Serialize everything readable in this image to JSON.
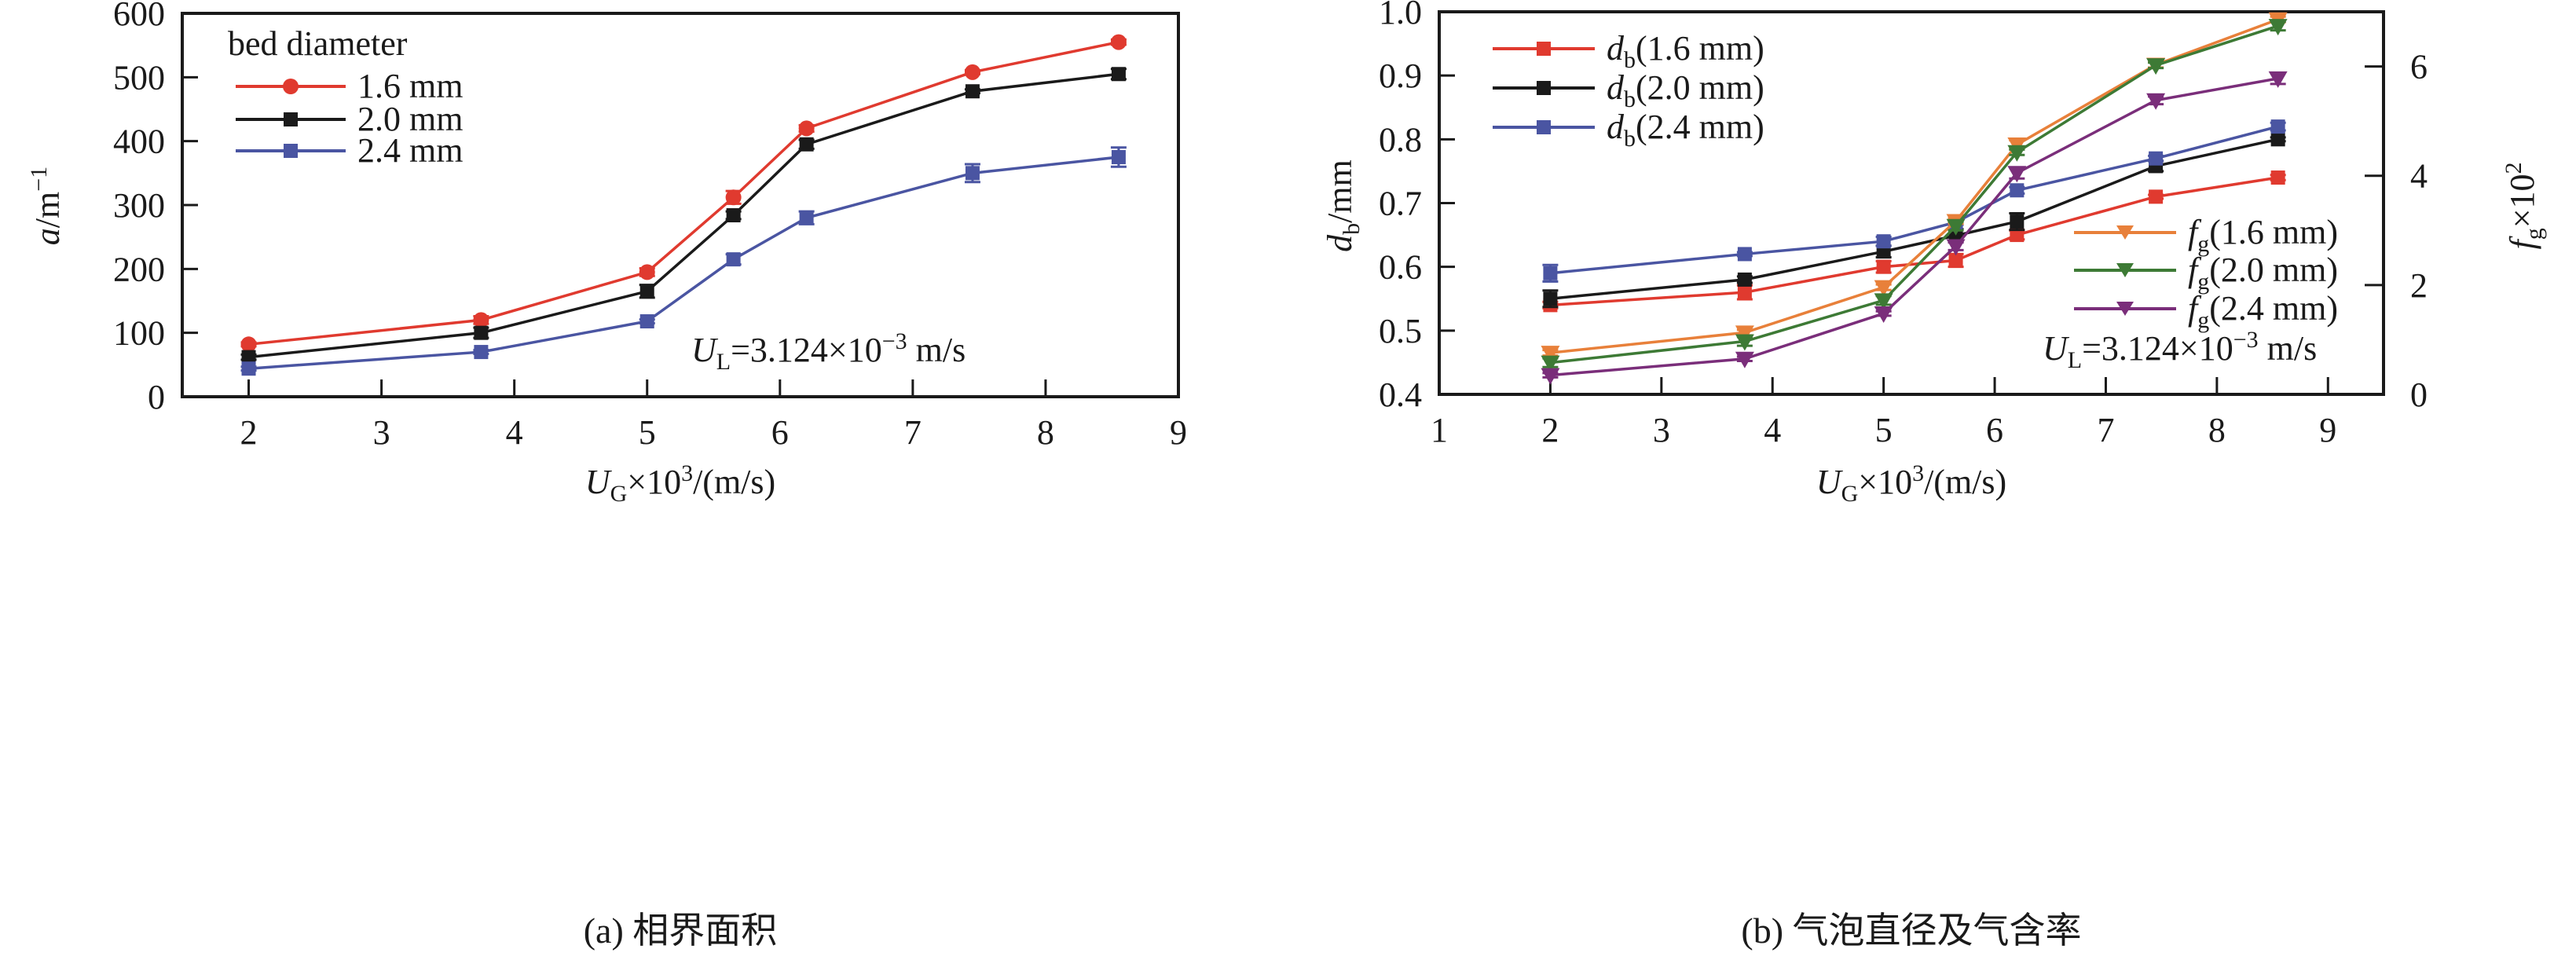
{
  "chart_data": [
    {
      "type": "line",
      "panel": "a",
      "caption": "(a) 相界面积",
      "xlabel": "U_G×10³/(m/s)",
      "ylabel": "a/m⁻¹",
      "xlim": [
        1.5,
        9
      ],
      "ylim": [
        0,
        600
      ],
      "xticks": [
        2,
        3,
        4,
        5,
        6,
        7,
        8,
        9
      ],
      "yticks": [
        0,
        100,
        200,
        300,
        400,
        500,
        600
      ],
      "legend_title": "bed diameter",
      "legend_position": "top-left",
      "annotation": "U_L=3.124×10⁻³ m/s",
      "x": [
        2.0,
        3.75,
        5.0,
        5.65,
        6.2,
        7.45,
        8.55
      ],
      "series": [
        {
          "name": "1.6 mm",
          "color": "#e03a2f",
          "marker": "circle",
          "values": [
            82,
            120,
            195,
            312,
            420,
            508,
            555
          ],
          "errors": [
            3,
            6,
            6,
            10,
            5,
            3,
            4
          ]
        },
        {
          "name": "2.0 mm",
          "color": "#1a1a1a",
          "marker": "square",
          "values": [
            62,
            100,
            165,
            284,
            395,
            478,
            505
          ],
          "errors": [
            4,
            8,
            10,
            6,
            7,
            3,
            8
          ]
        },
        {
          "name": "2.4 mm",
          "color": "#4a55a2",
          "marker": "square",
          "values": [
            44,
            70,
            118,
            215,
            280,
            350,
            375
          ],
          "errors": [
            3,
            3,
            3,
            8,
            10,
            14,
            15
          ]
        }
      ]
    },
    {
      "type": "line",
      "panel": "b",
      "caption": "(b) 气泡直径及气含率",
      "xlabel": "U_G×10³/(m/s)",
      "ylabel": "d_b/mm",
      "ylabel_right": "f_g×10²",
      "xlim": [
        1,
        9.5
      ],
      "ylim": [
        0.4,
        1.0
      ],
      "ylim_right": [
        0,
        7
      ],
      "xticks": [
        1,
        2,
        3,
        4,
        5,
        6,
        7,
        8,
        9
      ],
      "yticks": [
        0.4,
        0.5,
        0.6,
        0.7,
        0.8,
        0.9,
        1.0
      ],
      "yticks_right": [
        0,
        2,
        4,
        6
      ],
      "legend_position": "top-left and bottom-right",
      "annotation": "U_L=3.124×10⁻³ m/s",
      "x": [
        2.0,
        3.75,
        5.0,
        5.65,
        6.2,
        7.45,
        8.55
      ],
      "series": [
        {
          "name": "d_b(1.6 mm)",
          "axis": "left",
          "color": "#e03a2f",
          "marker": "square",
          "values": [
            0.54,
            0.56,
            0.6,
            0.61,
            0.65,
            0.71,
            0.74
          ],
          "errors": [
            0.005,
            0.011,
            0.009,
            0.01,
            0.007,
            0.003,
            0.004
          ]
        },
        {
          "name": "d_b(2.0 mm)",
          "axis": "left",
          "color": "#1a1a1a",
          "marker": "square",
          "values": [
            0.55,
            0.58,
            0.624,
            0.649,
            0.671,
            0.758,
            0.8
          ],
          "errors": [
            0.013,
            0.005,
            0.009,
            0.01,
            0.013,
            0.008,
            0.003
          ]
        },
        {
          "name": "d_b(2.4 mm)",
          "axis": "left",
          "color": "#4a55a2",
          "marker": "square",
          "values": [
            0.59,
            0.62,
            0.64,
            0.67,
            0.72,
            0.77,
            0.82
          ],
          "errors": [
            0.013,
            0.003,
            0.007,
            0.004,
            0.005,
            0.004,
            0.006
          ]
        },
        {
          "name": "f_g(1.6 mm)",
          "axis": "right",
          "color": "#e8803a",
          "marker": "triangle-down",
          "values": [
            0.76,
            1.13,
            1.96,
            3.17,
            4.57,
            6.03,
            6.86
          ],
          "errors": [
            0.05,
            0.05,
            0.05,
            0.05,
            0.08,
            0.05,
            0.05
          ]
        },
        {
          "name": "f_g(2.0 mm)",
          "axis": "right",
          "color": "#3d7a35",
          "marker": "triangle-down",
          "values": [
            0.58,
            0.97,
            1.72,
            3.08,
            4.43,
            6.02,
            6.74
          ],
          "errors": [
            0.08,
            0.08,
            0.08,
            0.08,
            0.05,
            0.05,
            0.08
          ]
        },
        {
          "name": "f_g(2.4 mm)",
          "axis": "right",
          "color": "#7a2e7a",
          "marker": "triangle-down",
          "values": [
            0.35,
            0.65,
            1.48,
            2.71,
            4.05,
            5.38,
            5.78
          ],
          "errors": [
            0.04,
            0.04,
            0.04,
            0.07,
            0.1,
            0.07,
            0.1
          ]
        }
      ]
    }
  ],
  "labels": {
    "a_legend_title": "bed diameter",
    "a_leg1": "1.6 mm",
    "a_leg2": "2.0 mm",
    "a_leg3": "2.4 mm",
    "a_ylabel_var": "a",
    "a_ylabel_unit": "/m",
    "a_ylabel_sup": "−1",
    "xlabel_var": "U",
    "xlabel_sub": "G",
    "xlabel_mid": "×10",
    "xlabel_sup": "3",
    "xlabel_unit": "/(m/s)",
    "annot_var": "U",
    "annot_sub": "L",
    "annot_mid": "=3.124×10",
    "annot_sup": "−3",
    "annot_unit": " m/s",
    "caption_a": "(a) 相界面积",
    "caption_b": "(b) 气泡直径及气含率",
    "b_ylabel_var": "d",
    "b_ylabel_sub": "b",
    "b_ylabel_unit": "/mm",
    "b_ylabel_right_var": "f",
    "b_ylabel_right_sub": "g",
    "b_ylabel_right_mid": "×10",
    "b_ylabel_right_sup": "2",
    "b_leg_db_var": "d",
    "b_leg_db_sub": "b",
    "b_leg_fg_var": "f",
    "b_leg_fg_sub": "g",
    "b_leg1_rest": "(1.6 mm)",
    "b_leg2_rest": "(2.0 mm)",
    "b_leg3_rest": "(2.4 mm)"
  }
}
